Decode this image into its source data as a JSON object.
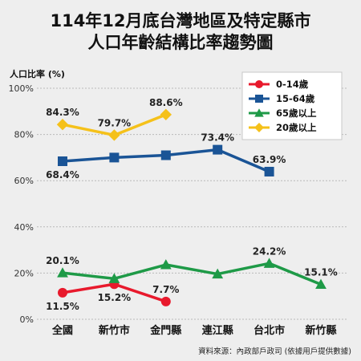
{
  "title_line1": "114年12月底台灣地區及特定縣市",
  "title_line2": "人口年齡結構比率趨勢圖",
  "source": "資料來源：內政部戶政司 (依據用戶提供數據)",
  "chart_data": {
    "type": "line",
    "title": "114年12月底台灣地區及特定縣市人口年齡結構比率趨勢圖",
    "ylabel": "人口比率 (%)",
    "xlabel": "",
    "ylim": [
      0,
      100
    ],
    "yticks": [
      "0%",
      "20%",
      "40%",
      "60%",
      "80%",
      "100%"
    ],
    "ytick_values": [
      0,
      20,
      40,
      60,
      80,
      100
    ],
    "grid": true,
    "legend_position": "top-right",
    "categories": [
      "全國",
      "新竹市",
      "金門縣",
      "連江縣",
      "台北市",
      "新竹縣"
    ],
    "series": [
      {
        "name": "0-14歲",
        "color": "#e8192c",
        "marker": "circle",
        "values": [
          11.5,
          15.2,
          7.7,
          null,
          null,
          null
        ],
        "labels": [
          "11.5%",
          "15.2%",
          "7.7%",
          "",
          "",
          ""
        ],
        "label_side": [
          "below",
          "below",
          "above",
          "",
          "",
          ""
        ]
      },
      {
        "name": "15-64歲",
        "color": "#1a5496",
        "marker": "square",
        "values": [
          68.4,
          70.0,
          71.0,
          73.4,
          63.9,
          null
        ],
        "labels": [
          "68.4%",
          "",
          "",
          "73.4%",
          "63.9%",
          ""
        ],
        "label_side": [
          "below",
          "",
          "",
          "above",
          "above",
          ""
        ]
      },
      {
        "name": "65歲以上",
        "color": "#1e9a47",
        "marker": "triangle",
        "values": [
          20.1,
          17.6,
          23.6,
          19.6,
          24.2,
          15.1
        ],
        "labels": [
          "20.1%",
          "",
          "",
          "",
          "24.2%",
          "15.1%"
        ],
        "label_side": [
          "above",
          "",
          "",
          "",
          "above",
          "above"
        ]
      },
      {
        "name": "20歲以上",
        "color": "#f5c11a",
        "marker": "diamond",
        "values": [
          84.3,
          79.7,
          88.6,
          null,
          null,
          null
        ],
        "labels": [
          "84.3%",
          "79.7%",
          "88.6%",
          "",
          "",
          ""
        ],
        "label_side": [
          "above",
          "above",
          "above",
          "",
          "",
          ""
        ]
      }
    ]
  }
}
